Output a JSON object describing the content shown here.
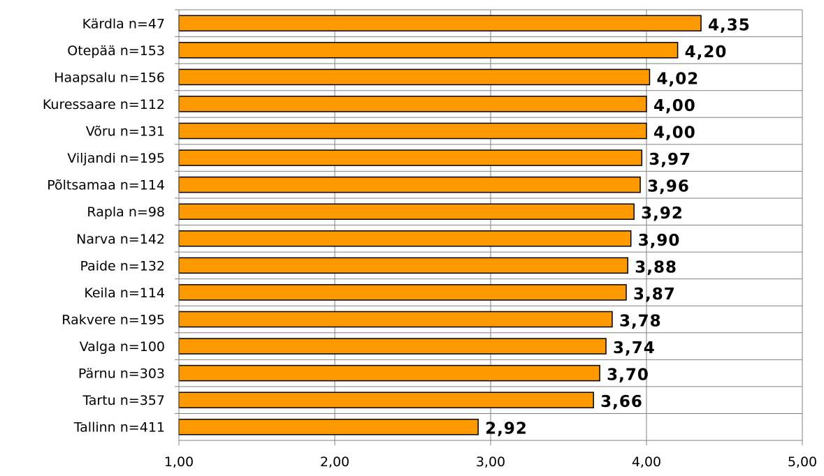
{
  "chart_data": {
    "type": "bar",
    "orientation": "horizontal",
    "categories": [
      "Kärdla n=47",
      "Otepää n=153",
      "Haapsalu n=156",
      "Kuressaare n=112",
      "Võru n=131",
      "Viljandi n=195",
      "Põltsamaa n=114",
      "Rapla n=98",
      "Narva n=142",
      "Paide n=132",
      "Keila n=114",
      "Rakvere n=195",
      "Valga n=100",
      "Pärnu n=303",
      "Tartu n=357",
      "Tallinn n=411"
    ],
    "values": [
      4.35,
      4.2,
      4.02,
      4.0,
      4.0,
      3.97,
      3.96,
      3.92,
      3.9,
      3.88,
      3.87,
      3.78,
      3.74,
      3.7,
      3.66,
      2.92
    ],
    "value_labels": [
      "4,35",
      "4,20",
      "4,02",
      "4,00",
      "4,00",
      "3,97",
      "3,96",
      "3,92",
      "3,90",
      "3,88",
      "3,87",
      "3,78",
      "3,74",
      "3,70",
      "3,66",
      "2,92"
    ],
    "xlim": [
      1,
      5
    ],
    "xticks": [
      1,
      2,
      3,
      4,
      5
    ],
    "xtick_labels": [
      "1,00",
      "2,00",
      "3,00",
      "4,00",
      "5,00"
    ],
    "grid": true,
    "legend": "none",
    "colors": {
      "bar_fill": "#ff9900",
      "bar_stroke": "#000000",
      "grid": "#808080"
    }
  }
}
